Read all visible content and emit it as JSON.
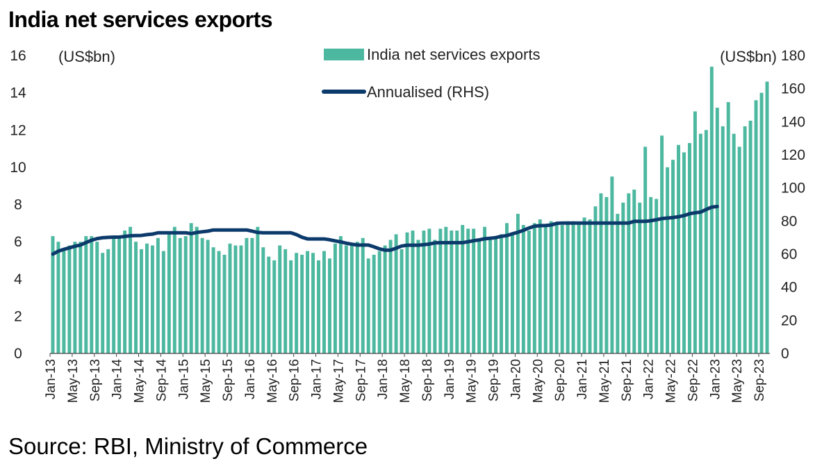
{
  "title": "India net services exports",
  "source": "Source: RBI, Ministry of Commerce",
  "chart_data": {
    "type": "bar+line",
    "title": "India net services exports",
    "left_axis": {
      "unit": "(US$bn)",
      "ylim": [
        0,
        16
      ],
      "ticks": [
        0,
        2,
        4,
        6,
        8,
        10,
        12,
        14,
        16
      ]
    },
    "right_axis": {
      "unit": "(US$bn)",
      "ylim": [
        0,
        180
      ],
      "ticks": [
        0,
        20,
        40,
        60,
        80,
        100,
        120,
        140,
        160,
        180
      ]
    },
    "x_tick_labels": [
      "Jan-13",
      "May-13",
      "Sep-13",
      "Jan-14",
      "May-14",
      "Sep-14",
      "Jan-15",
      "May-15",
      "Sep-15",
      "Jan-16",
      "May-16",
      "Sep-16",
      "Jan-17",
      "May-17",
      "Sep-17",
      "Jan-18",
      "May-18",
      "Sep-18",
      "Jan-19",
      "May-19",
      "Sep-19",
      "Jan-20",
      "May-20",
      "Sep-20",
      "Jan-21",
      "May-21",
      "Sep-21",
      "Jan-22",
      "May-22",
      "Sep-22",
      "Jan-23",
      "May-23",
      "Sep-23"
    ],
    "x_tick_every_months": 4,
    "period": "Jan-13 to Oct-23 (monthly)",
    "grid": false,
    "legend_position": "top-center",
    "colors": {
      "bars": "#4db8a0",
      "line": "#0b3a6b"
    },
    "series": [
      {
        "name": "India net services exports",
        "type": "bar",
        "axis": "left",
        "values": [
          6.3,
          6.0,
          5.6,
          5.8,
          6.0,
          6.0,
          6.3,
          6.3,
          6.0,
          5.4,
          5.6,
          6.2,
          6.2,
          6.6,
          6.8,
          6.0,
          5.6,
          5.9,
          5.8,
          6.2,
          5.5,
          6.5,
          6.8,
          6.2,
          6.3,
          7.0,
          6.8,
          6.2,
          6.1,
          5.7,
          5.5,
          5.3,
          5.9,
          5.8,
          5.8,
          6.2,
          6.2,
          6.8,
          5.7,
          5.2,
          5.0,
          5.8,
          5.6,
          5.0,
          5.4,
          5.3,
          5.5,
          5.4,
          5.0,
          5.5,
          5.1,
          5.9,
          6.3,
          5.8,
          5.9,
          6.0,
          6.2,
          5.1,
          5.3,
          5.5,
          5.8,
          6.1,
          6.4,
          5.6,
          6.5,
          6.6,
          6.1,
          6.6,
          6.7,
          6.1,
          6.7,
          6.8,
          6.6,
          6.6,
          6.9,
          6.7,
          6.7,
          6.1,
          6.8,
          6.2,
          6.2,
          6.4,
          7.0,
          6.5,
          7.5,
          6.9,
          6.6,
          7.0,
          7.2,
          6.9,
          7.1,
          7.0,
          6.9,
          7.1,
          7.1,
          7.0,
          7.3,
          7.2,
          7.9,
          8.6,
          8.4,
          9.5,
          7.5,
          8.1,
          8.6,
          8.8,
          8.1,
          11.1,
          8.4,
          8.3,
          11.7,
          10.0,
          10.4,
          11.2,
          10.8,
          11.3,
          13.0,
          11.8,
          12.0,
          15.4,
          13.2,
          12.2,
          13.5,
          11.8,
          11.1,
          12.2,
          12.5,
          13.6,
          14.0,
          14.6
        ]
      },
      {
        "name": "Annualised (RHS)",
        "type": "line",
        "axis": "right",
        "values": [
          60.0,
          61.8,
          62.9,
          63.8,
          64.8,
          65.5,
          67.0,
          68.4,
          69.4,
          69.9,
          70.1,
          70.3,
          70.3,
          70.7,
          71.1,
          71.2,
          71.3,
          71.8,
          72.1,
          72.9,
          72.9,
          72.9,
          72.9,
          72.9,
          72.9,
          72.4,
          73.1,
          73.5,
          73.9,
          74.6,
          74.6,
          74.6,
          74.6,
          74.6,
          74.6,
          74.6,
          73.9,
          73.1,
          72.9,
          72.9,
          72.9,
          72.9,
          72.9,
          72.9,
          71.8,
          70.2,
          69.2,
          69.2,
          69.2,
          69.2,
          68.7,
          68.0,
          67.4,
          66.6,
          66.0,
          65.5,
          65.5,
          65.5,
          64.4,
          63.2,
          62.4,
          62.4,
          63.6,
          64.9,
          65.4,
          65.4,
          65.4,
          65.7,
          66.1,
          66.8,
          66.9,
          66.9,
          66.9,
          66.9,
          66.9,
          67.5,
          68.1,
          68.6,
          69.3,
          69.6,
          70.0,
          70.8,
          71.2,
          72.3,
          73.2,
          74.4,
          75.8,
          76.9,
          77.2,
          77.3,
          77.6,
          78.6,
          78.8,
          78.8,
          78.8,
          78.8,
          78.8,
          78.8,
          78.8,
          78.8,
          78.8,
          78.8,
          78.8,
          78.8,
          78.8,
          79.8,
          79.8,
          79.8,
          80.2,
          80.8,
          81.5,
          81.8,
          82.1,
          82.6,
          83.3,
          84.4,
          85.0,
          85.4,
          87.0,
          88.4,
          88.8
        ]
      }
    ]
  }
}
